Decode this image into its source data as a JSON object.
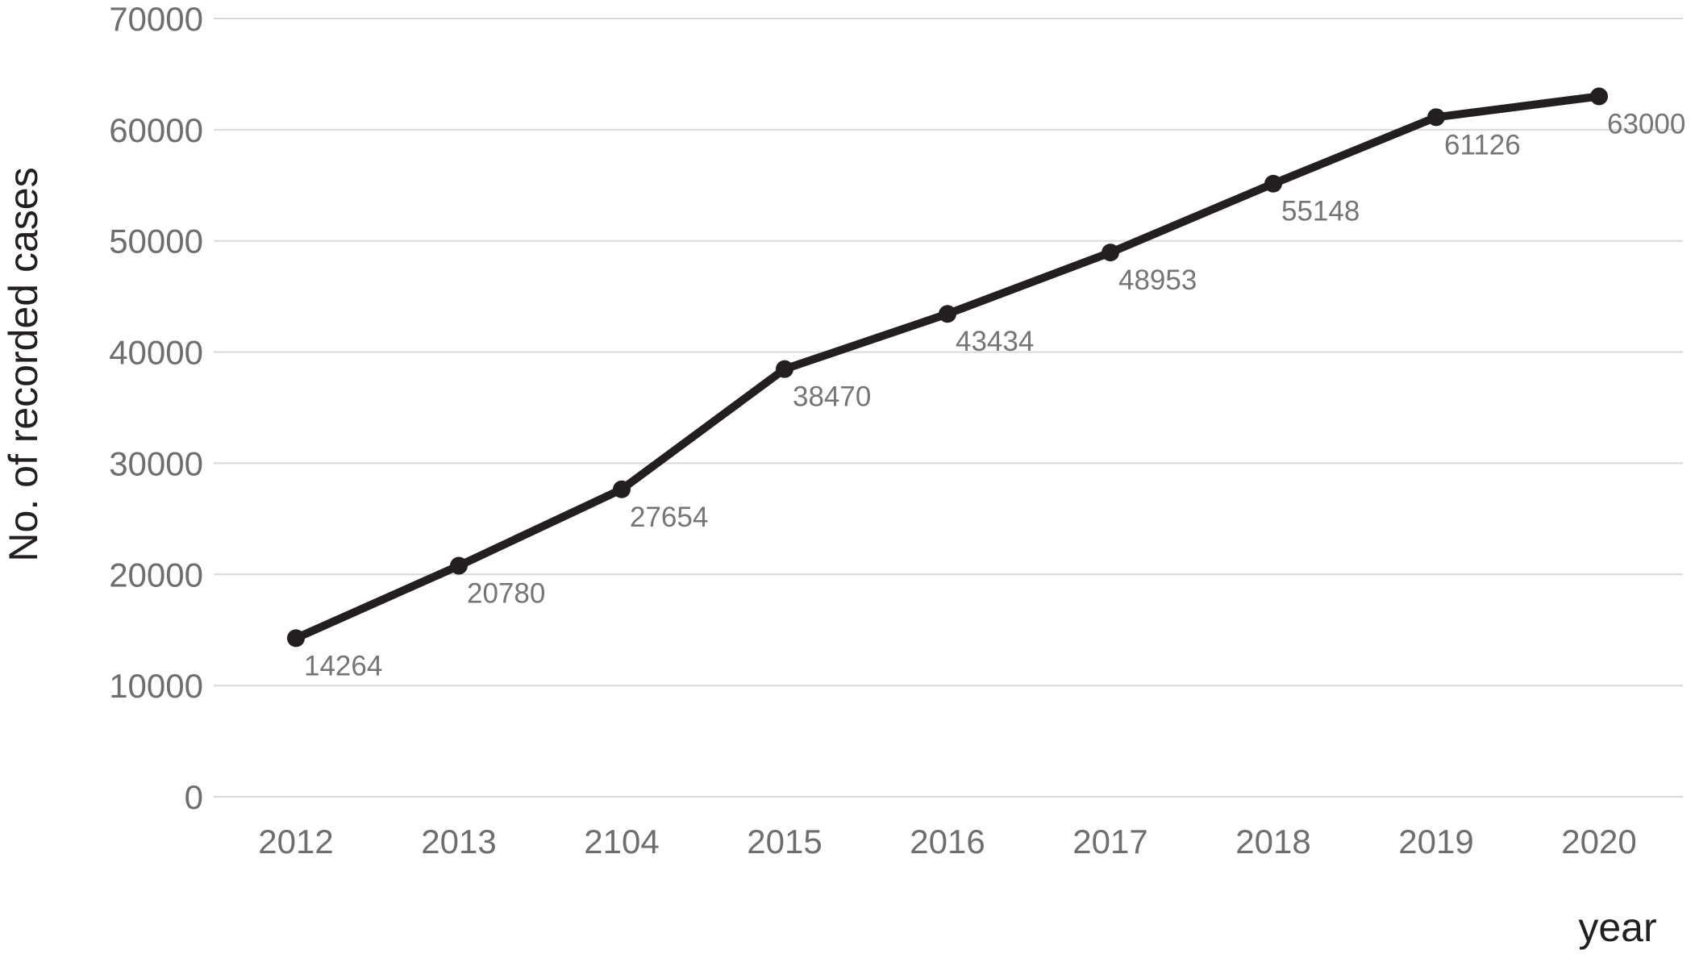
{
  "chart_data": {
    "type": "line",
    "title": "",
    "xlabel": "year",
    "ylabel": "No. of recorded cases",
    "categories": [
      "2012",
      "2013",
      "2104",
      "2015",
      "2016",
      "2017",
      "2018",
      "2019",
      "2020"
    ],
    "series": [
      {
        "name": "No. of recorded cases",
        "values": [
          14264,
          20780,
          27654,
          38470,
          43434,
          48953,
          55148,
          61126,
          63000
        ],
        "data_labels": [
          "14264",
          "20780",
          "27654",
          "38470",
          "43434",
          "48953",
          "55148",
          "61126",
          "63000"
        ]
      }
    ],
    "y_ticks": [
      0,
      10000,
      20000,
      30000,
      40000,
      50000,
      60000,
      70000
    ],
    "y_tick_labels": [
      "0",
      "10000",
      "20000",
      "30000",
      "40000",
      "50000",
      "60000",
      "70000"
    ],
    "ylim": [
      0,
      70000
    ],
    "grid": "horizontal-only",
    "legend_position": "none",
    "marker": "filled-circle",
    "colors": {
      "line": "#231f20",
      "marker": "#231f20",
      "tick_label": "#6e6e6e",
      "data_label": "#757575",
      "gridline": "#d9d9d9",
      "axis_title": "#231f20",
      "background": "#ffffff"
    }
  }
}
